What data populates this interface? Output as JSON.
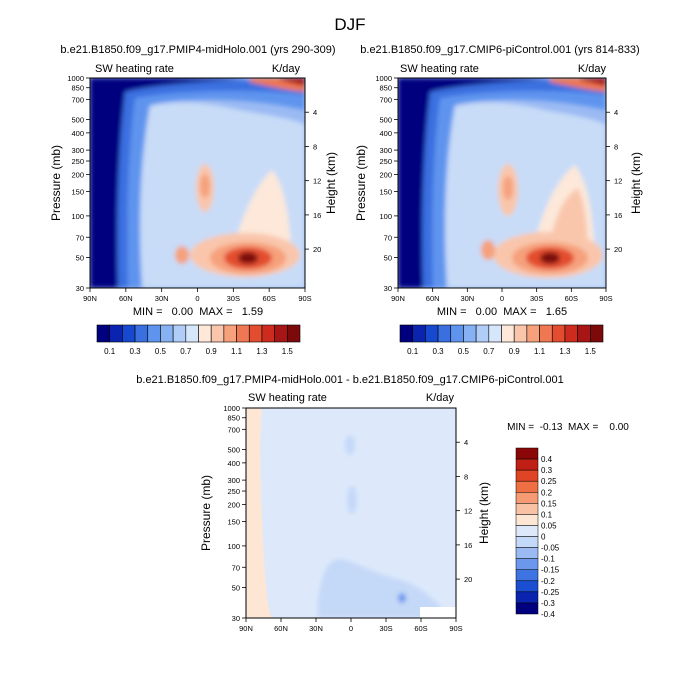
{
  "title": "DJF",
  "colors": {
    "scale": [
      "#00007f",
      "#0a24b0",
      "#1749d0",
      "#3a6fe0",
      "#5e94ee",
      "#86b2f4",
      "#b0cdf8",
      "#d6e6fb",
      "#fde8d9",
      "#f9c6ac",
      "#f6a07c",
      "#ef7751",
      "#e34d2f",
      "#cc2b1d",
      "#a71515",
      "#7d0a0a"
    ],
    "diff": [
      "#00007f",
      "#0a24b0",
      "#1a4fd2",
      "#3d74e2",
      "#6b98ec",
      "#9bb9f3",
      "#c4d8f8",
      "#dde9fb",
      "#fde6d4",
      "#f9c2a4",
      "#f59a72",
      "#ef6f44",
      "#df4424",
      "#c01f15",
      "#8b0707"
    ]
  },
  "chart_data": [
    {
      "type": "heatmap",
      "id": "top-left",
      "title": "b.e21.B1850.f09_g17.PMIP4-midHolo.001 (yrs 290-309)",
      "left_label": "SW heating rate",
      "right_label": "K/day",
      "ylabel": "Pressure (mb)",
      "y2label": "Height (km)",
      "x_ticks": [
        "90N",
        "60N",
        "30N",
        "0",
        "30S",
        "60S",
        "90S"
      ],
      "y_ticks": [
        "30",
        "50",
        "70",
        "100",
        "150",
        "200",
        "250",
        "300",
        "400",
        "500",
        "700",
        "850",
        "1000"
      ],
      "y2_ticks": [
        "20",
        "16",
        "12",
        "8",
        "4"
      ],
      "stats": {
        "min": "0.00",
        "max": "1.59"
      },
      "stats_text": "MIN =   0.00  MAX =   1.59",
      "colorbar_labels": [
        "0.1",
        "0.3",
        "0.5",
        "0.7",
        "0.9",
        "1.1",
        "1.3",
        "1.5"
      ],
      "ylim": [
        1000,
        30
      ],
      "xlim": [
        90,
        -90
      ]
    },
    {
      "type": "heatmap",
      "id": "top-right",
      "title": "b.e21.B1850.f09_g17.CMIP6-piControl.001 (yrs 814-833)",
      "left_label": "SW heating rate",
      "right_label": "K/day",
      "ylabel": "Pressure (mb)",
      "y2label": "Height (km)",
      "x_ticks": [
        "90N",
        "60N",
        "30N",
        "0",
        "30S",
        "60S",
        "90S"
      ],
      "y_ticks": [
        "30",
        "50",
        "70",
        "100",
        "150",
        "200",
        "250",
        "300",
        "400",
        "500",
        "700",
        "850",
        "1000"
      ],
      "y2_ticks": [
        "20",
        "16",
        "12",
        "8",
        "4"
      ],
      "stats": {
        "min": "0.00",
        "max": "1.65"
      },
      "stats_text": "MIN =   0.00  MAX =   1.65",
      "colorbar_labels": [
        "0.1",
        "0.3",
        "0.5",
        "0.7",
        "0.9",
        "1.1",
        "1.3",
        "1.5"
      ],
      "ylim": [
        1000,
        30
      ],
      "xlim": [
        90,
        -90
      ]
    },
    {
      "type": "heatmap",
      "id": "bottom",
      "title": "b.e21.B1850.f09_g17.PMIP4-midHolo.001 - b.e21.B1850.f09_g17.CMIP6-piControl.001",
      "left_label": "SW heating rate",
      "right_label": "K/day",
      "ylabel": "Pressure (mb)",
      "y2label": "Height (km)",
      "x_ticks": [
        "90N",
        "60N",
        "30N",
        "0",
        "30S",
        "60S",
        "90S"
      ],
      "y_ticks": [
        "30",
        "50",
        "70",
        "100",
        "150",
        "200",
        "250",
        "300",
        "400",
        "500",
        "700",
        "850",
        "1000"
      ],
      "y2_ticks": [
        "20",
        "16",
        "12",
        "8",
        "4"
      ],
      "stats": {
        "min": "-0.13",
        "max": "0.00"
      },
      "stats_text": "MIN =  -0.13  MAX =    0.00",
      "colorbar_labels": [
        "0.4",
        "0.3",
        "0.25",
        "0.2",
        "0.15",
        "0.1",
        "0.05",
        "0",
        "-0.05",
        "-0.1",
        "-0.15",
        "-0.2",
        "-0.25",
        "-0.3",
        "-0.4"
      ],
      "ylim": [
        1000,
        30
      ],
      "xlim": [
        90,
        -90
      ]
    }
  ]
}
